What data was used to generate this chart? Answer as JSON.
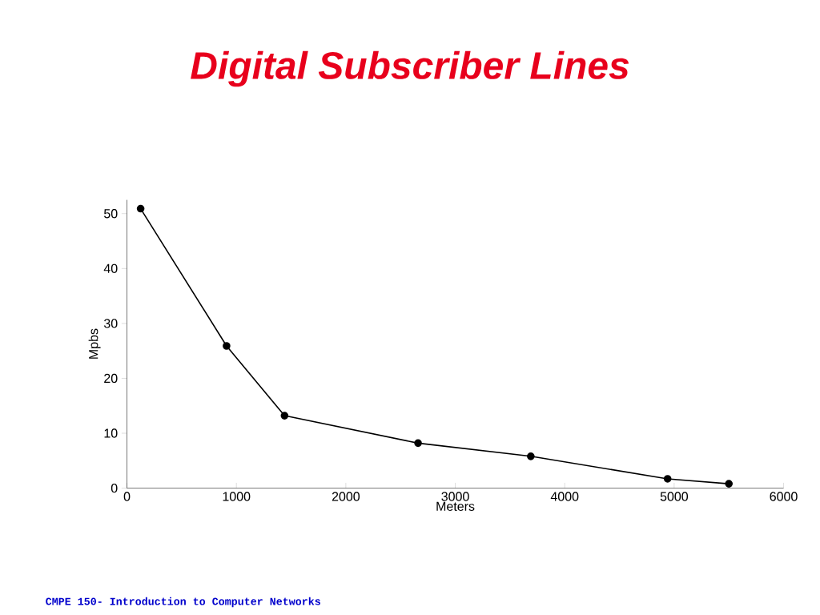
{
  "chart_data": {
    "type": "line",
    "title": "Digital Subscriber Lines",
    "xlabel": "Meters",
    "ylabel": "Mpbs",
    "x": [
      125,
      910,
      1440,
      2660,
      3690,
      4940,
      5500
    ],
    "values": [
      50.9,
      25.9,
      13.2,
      8.2,
      5.8,
      1.7,
      0.8
    ],
    "color": "#000000",
    "marker": "circle",
    "line_style": "solid",
    "xlim": [
      0,
      6000
    ],
    "ylim": [
      0,
      52.5
    ],
    "xticks": [
      0,
      1000,
      2000,
      3000,
      4000,
      5000,
      6000
    ],
    "yticks": [
      0,
      10,
      20,
      30,
      40,
      50
    ],
    "annotations": [
      "CMPE 150- Introduction to Computer Networks"
    ]
  }
}
